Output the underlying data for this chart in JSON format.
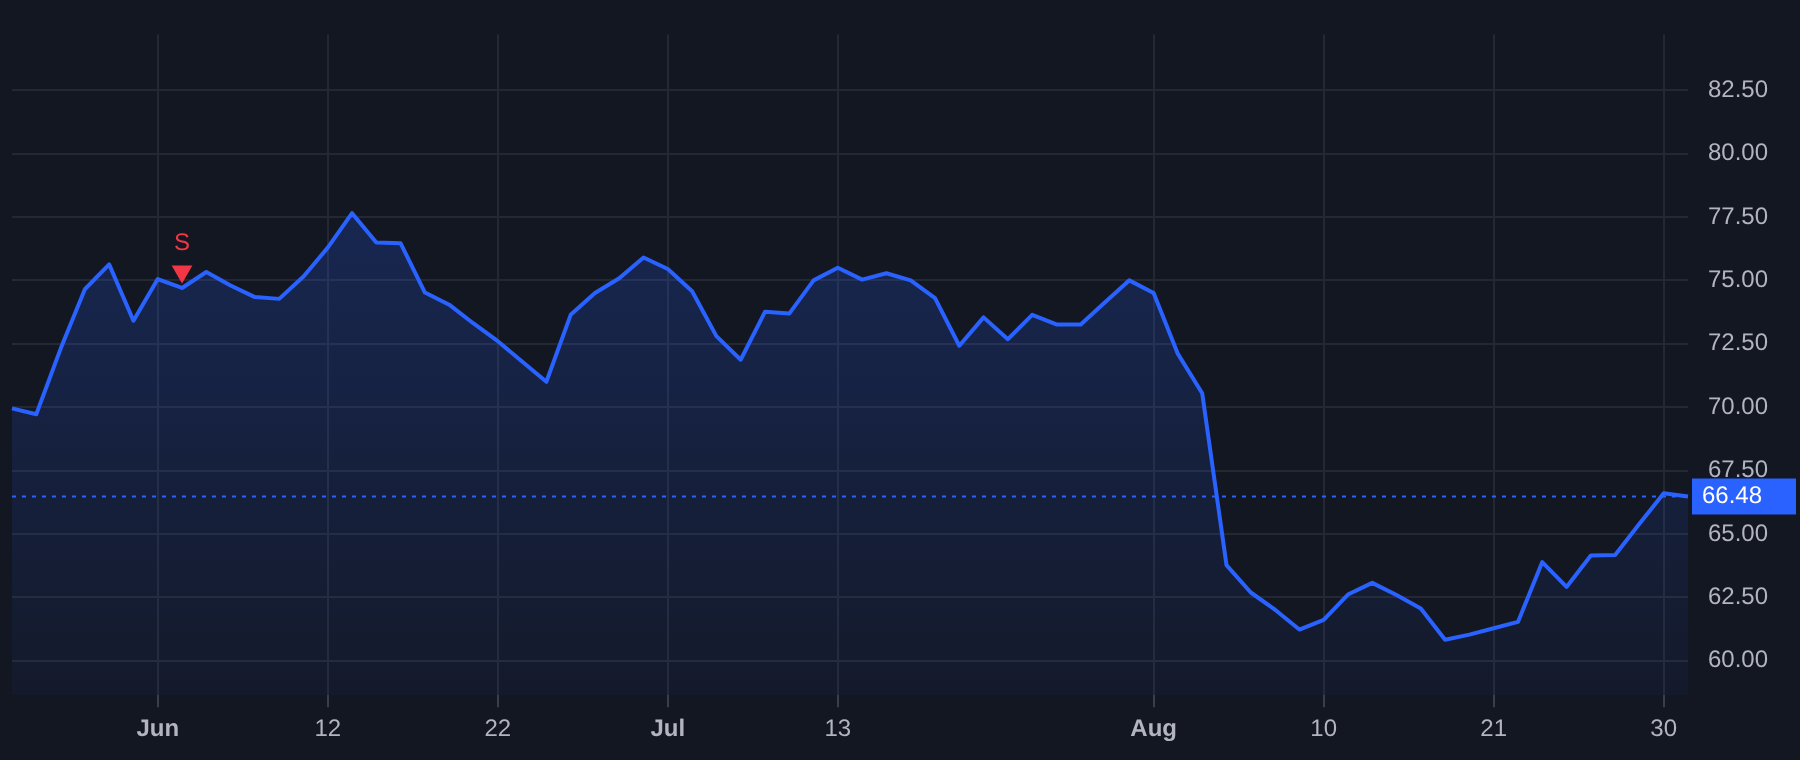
{
  "chart_data": {
    "type": "area",
    "categories": [
      null,
      null,
      null,
      null,
      null,
      null,
      "Jun",
      null,
      null,
      null,
      null,
      null,
      null,
      "12",
      null,
      null,
      null,
      null,
      null,
      null,
      "22",
      null,
      null,
      null,
      null,
      null,
      null,
      "Jul",
      null,
      null,
      null,
      null,
      null,
      null,
      "13",
      null,
      null,
      null,
      null,
      null,
      null,
      null,
      null,
      null,
      null,
      null,
      null,
      "Aug",
      null,
      null,
      null,
      null,
      null,
      null,
      "10",
      null,
      null,
      null,
      null,
      null,
      null,
      "21",
      null,
      null,
      null,
      null,
      null,
      null,
      "30",
      null
    ],
    "series": [
      {
        "color": "#2962ff",
        "values": [
          69.95,
          69.72,
          72.3,
          74.65,
          75.63,
          73.41,
          75.05,
          74.7,
          75.33,
          74.8,
          74.34,
          74.27,
          75.15,
          76.29,
          77.65,
          76.49,
          76.46,
          74.52,
          74.04,
          73.3,
          72.6,
          71.8,
          71.0,
          73.64,
          74.5,
          75.08,
          75.9,
          75.45,
          74.57,
          72.8,
          71.87,
          73.76,
          73.69,
          75.0,
          75.5,
          75.03,
          75.28,
          75.0,
          74.3,
          72.42,
          73.54,
          72.68,
          73.64,
          73.26,
          73.26,
          74.14,
          75.0,
          74.5,
          72.1,
          70.55,
          63.77,
          62.69,
          62.01,
          61.23,
          61.61,
          62.61,
          63.07,
          62.59,
          62.06,
          60.83,
          61.03,
          61.28,
          61.53,
          63.89,
          62.91,
          64.15,
          64.17,
          65.4,
          66.6,
          66.48
        ]
      },
      {
        "type": "scatter",
        "name": "S",
        "color": "#f23645",
        "marker": "triangle",
        "values": [
          null,
          null,
          null,
          null,
          null,
          null,
          null,
          75.35,
          null,
          null,
          null,
          null,
          null,
          null,
          null,
          null,
          null,
          null,
          null,
          null,
          null,
          null,
          null,
          null,
          null,
          null,
          null,
          null,
          null,
          null,
          null,
          null,
          null,
          null,
          null,
          null,
          null,
          null,
          null,
          null,
          null,
          null,
          null,
          null,
          null,
          null,
          null,
          null,
          null,
          null,
          null,
          null,
          null,
          null,
          null,
          null,
          null,
          null,
          null,
          null,
          null,
          null,
          null,
          null,
          null,
          null,
          null,
          null,
          null,
          null
        ]
      }
    ],
    "ylim": [
      58.64,
      84.7
    ],
    "yticks": [
      {
        "value": 60,
        "label": "60.00"
      },
      {
        "value": 62.5,
        "label": "62.50"
      },
      {
        "value": 65,
        "label": "65.00"
      },
      {
        "value": 67.5,
        "label": "67.50"
      },
      {
        "value": 70,
        "label": "70.00"
      },
      {
        "value": 72.5,
        "label": "72.50"
      },
      {
        "value": 75,
        "label": "75.00"
      },
      {
        "value": 77.5,
        "label": "77.50"
      },
      {
        "value": 80,
        "label": "80.00"
      },
      {
        "value": 82.5,
        "label": "82.50"
      }
    ],
    "ref_lines": [
      {
        "axis": "y",
        "value": 66.48,
        "label": "66.48",
        "color": "#2962ff",
        "line_style": "dotted"
      }
    ],
    "grid": true,
    "legend": false
  }
}
